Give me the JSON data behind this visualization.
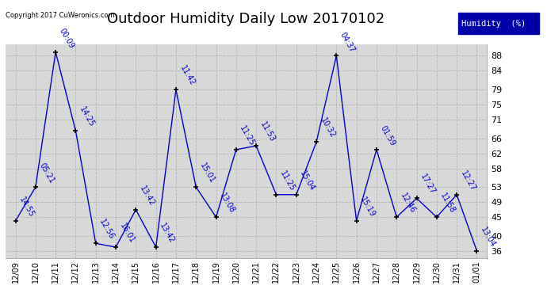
{
  "title": "Outdoor Humidity Daily Low 20170102",
  "x_labels": [
    "12/09",
    "12/10",
    "12/11",
    "12/12",
    "12/13",
    "12/14",
    "12/15",
    "12/16",
    "12/17",
    "12/18",
    "12/19",
    "12/20",
    "12/21",
    "12/22",
    "12/23",
    "12/24",
    "12/25",
    "12/26",
    "12/27",
    "12/28",
    "12/29",
    "12/30",
    "12/31",
    "01/01"
  ],
  "values": [
    44,
    53,
    89,
    68,
    38,
    37,
    47,
    37,
    79,
    53,
    45,
    63,
    64,
    51,
    51,
    65,
    88,
    44,
    63,
    45,
    50,
    45,
    51,
    36
  ],
  "annotations": [
    "14:55",
    "05:21",
    "00:09",
    "14:25",
    "12:56",
    "16:01",
    "13:42",
    "13:42",
    "11:42",
    "15:01",
    "13:08",
    "11:25",
    "11:53",
    "11:25",
    "15:04",
    "10:32",
    "04:37",
    "15:19",
    "01:59",
    "12:46",
    "17:27",
    "11:58",
    "12:27",
    "13:04"
  ],
  "yticks": [
    36,
    40,
    45,
    49,
    53,
    58,
    62,
    66,
    71,
    75,
    79,
    84,
    88
  ],
  "ylim": [
    34,
    91
  ],
  "line_color": "#0000cc",
  "marker_color": "#000000",
  "bg_color": "#ffffff",
  "plot_bg_color": "#d8d8d8",
  "grid_color": "#b0b0b0",
  "legend_label": "Humidity  (%)",
  "legend_bg": "#0000aa",
  "legend_fg": "#ffffff",
  "copyright_text": "Copyright 2017 CuWeronics.com",
  "title_fontsize": 13,
  "annotation_fontsize": 7,
  "annotation_color": "#0000cc"
}
